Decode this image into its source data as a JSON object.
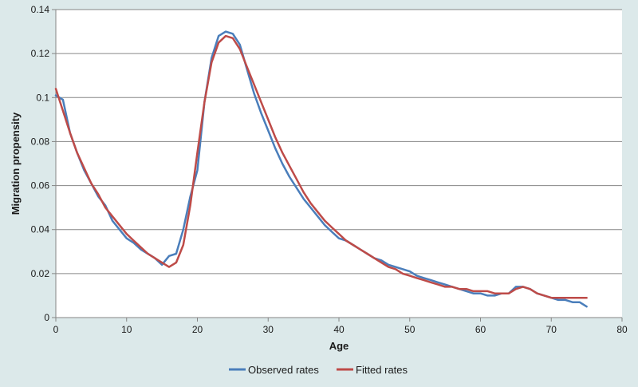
{
  "chart_data": {
    "type": "line",
    "title": "",
    "xlabel": "Age",
    "ylabel": "Migration  propensity",
    "xlim": [
      0,
      80
    ],
    "ylim": [
      0,
      0.14
    ],
    "x_ticks": [
      "0",
      "10",
      "20",
      "30",
      "40",
      "50",
      "60",
      "70",
      "80"
    ],
    "y_ticks": [
      "0",
      "0.02",
      "0.04",
      "0.06",
      "0.08",
      "0.1",
      "0.12",
      "0.14"
    ],
    "grid": "horizontal",
    "legend_position": "bottom",
    "series": [
      {
        "name": "Observed rates",
        "color": "#4a7ebb",
        "x": [
          0,
          1,
          2,
          3,
          4,
          5,
          6,
          7,
          8,
          9,
          10,
          11,
          12,
          13,
          14,
          15,
          16,
          17,
          18,
          19,
          20,
          21,
          22,
          23,
          24,
          25,
          26,
          27,
          28,
          29,
          30,
          31,
          32,
          33,
          34,
          35,
          36,
          37,
          38,
          39,
          40,
          41,
          42,
          43,
          44,
          45,
          46,
          47,
          48,
          49,
          50,
          51,
          52,
          53,
          54,
          55,
          56,
          57,
          58,
          59,
          60,
          61,
          62,
          63,
          64,
          65,
          66,
          67,
          68,
          69,
          70,
          71,
          72,
          73,
          74,
          75
        ],
        "values": [
          0.101,
          0.099,
          0.084,
          0.075,
          0.067,
          0.061,
          0.055,
          0.051,
          0.044,
          0.04,
          0.036,
          0.034,
          0.031,
          0.029,
          0.027,
          0.024,
          0.028,
          0.029,
          0.04,
          0.055,
          0.067,
          0.098,
          0.118,
          0.128,
          0.13,
          0.129,
          0.124,
          0.113,
          0.102,
          0.093,
          0.085,
          0.077,
          0.07,
          0.064,
          0.059,
          0.054,
          0.05,
          0.046,
          0.042,
          0.039,
          0.036,
          0.035,
          0.033,
          0.031,
          0.029,
          0.027,
          0.026,
          0.024,
          0.023,
          0.022,
          0.021,
          0.019,
          0.018,
          0.017,
          0.016,
          0.015,
          0.014,
          0.013,
          0.012,
          0.011,
          0.011,
          0.01,
          0.01,
          0.011,
          0.011,
          0.014,
          0.014,
          0.013,
          0.011,
          0.01,
          0.009,
          0.008,
          0.008,
          0.007,
          0.007,
          0.005
        ]
      },
      {
        "name": "Fitted rates",
        "color": "#be4b48",
        "x": [
          0,
          1,
          2,
          3,
          4,
          5,
          6,
          7,
          8,
          9,
          10,
          11,
          12,
          13,
          14,
          15,
          16,
          17,
          18,
          19,
          20,
          21,
          22,
          23,
          24,
          25,
          26,
          27,
          28,
          29,
          30,
          31,
          32,
          33,
          34,
          35,
          36,
          37,
          38,
          39,
          40,
          41,
          42,
          43,
          44,
          45,
          46,
          47,
          48,
          49,
          50,
          51,
          52,
          53,
          54,
          55,
          56,
          57,
          58,
          59,
          60,
          61,
          62,
          63,
          64,
          65,
          66,
          67,
          68,
          69,
          70,
          71,
          72,
          73,
          74,
          75
        ],
        "values": [
          0.104,
          0.094,
          0.084,
          0.075,
          0.068,
          0.061,
          0.056,
          0.05,
          0.046,
          0.042,
          0.038,
          0.035,
          0.032,
          0.029,
          0.027,
          0.025,
          0.023,
          0.025,
          0.033,
          0.051,
          0.075,
          0.098,
          0.116,
          0.125,
          0.128,
          0.127,
          0.122,
          0.114,
          0.106,
          0.098,
          0.09,
          0.082,
          0.075,
          0.069,
          0.063,
          0.057,
          0.052,
          0.048,
          0.044,
          0.041,
          0.038,
          0.035,
          0.033,
          0.031,
          0.029,
          0.027,
          0.025,
          0.023,
          0.022,
          0.02,
          0.019,
          0.018,
          0.017,
          0.016,
          0.015,
          0.014,
          0.014,
          0.013,
          0.013,
          0.012,
          0.012,
          0.012,
          0.011,
          0.011,
          0.011,
          0.013,
          0.014,
          0.013,
          0.011,
          0.01,
          0.009,
          0.009,
          0.009,
          0.009,
          0.009,
          0.009
        ]
      }
    ]
  }
}
